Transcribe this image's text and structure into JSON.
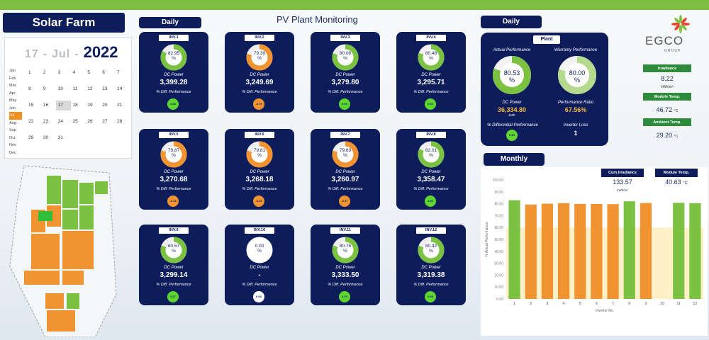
{
  "app": {
    "title": "Solar Farm",
    "header_title": "PV Plant Monitoring",
    "daily_tab": "Daily",
    "plant_daily_tab": "Daily",
    "monthly_tab": "Monthly",
    "brand": "EGCO",
    "brand_sub": "GROUP"
  },
  "calendar": {
    "day": "17",
    "month": "Jul",
    "year": "2022",
    "months": [
      "Jan",
      "Feb",
      "Mar",
      "Apr",
      "May",
      "Jun",
      "Jul",
      "Aug",
      "Sep",
      "Oct",
      "Nov",
      "Dec"
    ],
    "active_month": "Jul",
    "days": [
      "1",
      "2",
      "3",
      "4",
      "5",
      "6",
      "7",
      "8",
      "9",
      "10",
      "11",
      "12",
      "13",
      "14",
      "15",
      "16",
      "17",
      "18",
      "19",
      "20",
      "21",
      "22",
      "23",
      "24",
      "25",
      "26",
      "27",
      "28",
      "29",
      "30",
      "31"
    ],
    "selected_day": "17"
  },
  "inverters": [
    {
      "label": "INV.1",
      "perf": "82.95",
      "dc": "3,399.28",
      "diff": "0.95",
      "status": "good"
    },
    {
      "label": "INV.2",
      "perf": "79.30",
      "dc": "3,249.69",
      "diff": "-0.75",
      "status": "warn"
    },
    {
      "label": "INV.3",
      "perf": "80.06",
      "dc": "3,279.80",
      "diff": "0.00",
      "status": "good"
    },
    {
      "label": "INV.4",
      "perf": "80.48",
      "dc": "3,295.71",
      "diff": "0.40",
      "status": "good"
    },
    {
      "label": "INV.5",
      "perf": "79.87",
      "dc": "3,270.68",
      "diff": "-0.19",
      "status": "warn"
    },
    {
      "label": "INV.6",
      "perf": "79.81",
      "dc": "3,268.18",
      "diff": "-0.26",
      "status": "warn"
    },
    {
      "label": "INV.7",
      "perf": "79.63",
      "dc": "3,260.97",
      "diff": "-0.37",
      "status": "warn"
    },
    {
      "label": "INV.8",
      "perf": "82.01",
      "dc": "3,358.47",
      "diff": "1.50",
      "status": "good"
    },
    {
      "label": "INV.9",
      "perf": "80.57",
      "dc": "3,299.14",
      "diff": "0.07",
      "status": "good"
    },
    {
      "label": "INV.10",
      "perf": "0.00",
      "dc": "-",
      "diff": "0.00",
      "status": "off"
    },
    {
      "label": "INV.11",
      "perf": "80.76",
      "dc": "3,333.50",
      "diff": "0.70",
      "status": "good"
    },
    {
      "label": "INV.12",
      "perf": "80.42",
      "dc": "3,319.38",
      "diff": "0.45",
      "status": "good"
    }
  ],
  "inverter_labels": {
    "dc_power": "DC Power",
    "diff_perf": "% Diff. Performance",
    "pct": "%"
  },
  "plant": {
    "title": "Plant",
    "actual_label": "Actual Performance",
    "actual_value": "80.53",
    "actual_level": 80.53,
    "warranty_label": "Warranty Performance",
    "warranty_value": "80.00",
    "warranty_level": 80.0,
    "dc_label": "DC Power",
    "dc_value": "36,334.80",
    "dc_unit": "kWh",
    "pr_label": "Performance Ratio",
    "pr_value": "67.56%",
    "diff_label": "% Differential Performance",
    "diff_value": "0.53",
    "loss_label": "Inverter Loss",
    "loss_value": "1",
    "pct": "%"
  },
  "info": {
    "irradiance_label": "Irradiance",
    "irradiance_value": "8.22",
    "irradiance_unit": "kWh/m²",
    "module_label": "Module Temp.",
    "module_value": "46.72",
    "module_unit": "°C",
    "ambient_label": "Ambient Temp.",
    "ambient_value": "29.20",
    "ambient_unit": "°C"
  },
  "monthly": {
    "cum_irr_label": "Cum.Irradiance",
    "cum_irr_value": "133.57",
    "cum_irr_unit": "kWh/m²",
    "mod_temp_label": "Module Temp.",
    "mod_temp_value": "40.63",
    "mod_temp_unit": "°C"
  },
  "colors": {
    "navy": "#0d1d5c",
    "green": "#7cc242",
    "orange": "#f29331",
    "yellow": "#ffd966"
  },
  "chart_data": {
    "type": "bar",
    "title": "",
    "xlabel": "Inverter No.",
    "ylabel": "% Actual Performance",
    "ylim": [
      0,
      100
    ],
    "y_ticks": [
      "0.00",
      "10.00",
      "20.00",
      "30.00",
      "40.00",
      "50.00",
      "60.00",
      "70.00",
      "80.00",
      "90.00",
      "100.00"
    ],
    "categories": [
      "1",
      "2",
      "3",
      "4",
      "5",
      "6",
      "7",
      "8",
      "9",
      "10",
      "11",
      "12"
    ],
    "values": [
      82.95,
      79.3,
      80.06,
      80.48,
      79.87,
      79.81,
      79.63,
      82.01,
      80.57,
      0.0,
      80.76,
      80.42
    ],
    "bar_colors": [
      "green",
      "orange",
      "orange",
      "orange",
      "orange",
      "orange",
      "orange",
      "green",
      "orange",
      "none",
      "green",
      "green"
    ],
    "background_area": "yellow"
  }
}
